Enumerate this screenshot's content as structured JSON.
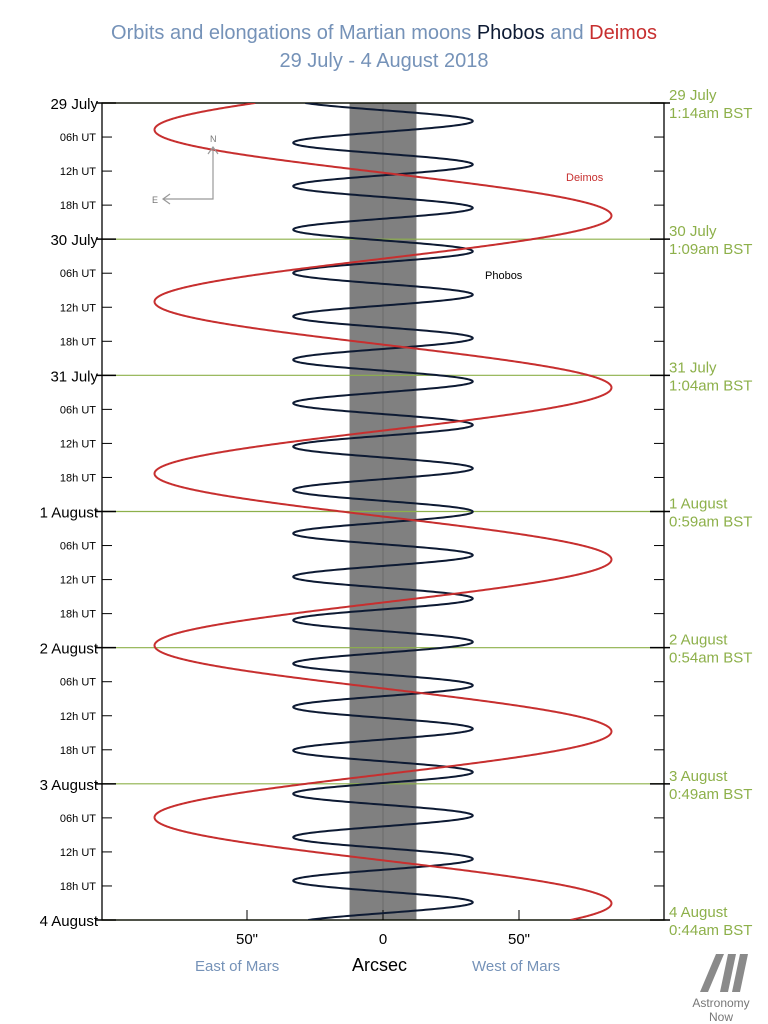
{
  "title": {
    "prefix": "Orbits and elongations of Martian moons",
    "phobos": "Phobos",
    "and": "and",
    "deimos": "Deimos",
    "dates": "29 July - 4 August 2018"
  },
  "colors": {
    "title": "#7592b8",
    "phobos": "#0d1a33",
    "deimos": "#c72f2f",
    "day_line": "#8db04a",
    "mars_band": "#808080"
  },
  "chart_data": {
    "type": "line",
    "title": "Orbits and elongations of Martian moons Phobos and Deimos",
    "subtitle": "29 July - 4 August 2018",
    "xlabel": "Arcsec",
    "xlim": [
      -100,
      100
    ],
    "ylim_days": [
      0,
      6
    ],
    "x_ticks": [
      {
        "value": -50,
        "label": "50\""
      },
      {
        "value": 0,
        "label": "0"
      },
      {
        "value": 50,
        "label": "50\""
      }
    ],
    "x_side_labels": {
      "east": "East of Mars",
      "west": "West of Mars"
    },
    "day_labels": [
      "29 July",
      "30 July",
      "31 July",
      "1 August",
      "2 August",
      "3 August",
      "4 August"
    ],
    "hour_labels": [
      "06h UT",
      "12h UT",
      "18h UT"
    ],
    "transit_labels": [
      {
        "date": "29 July",
        "time": "1:14am BST"
      },
      {
        "date": "30 July",
        "time": "1:09am BST"
      },
      {
        "date": "31 July",
        "time": "1:04am BST"
      },
      {
        "date": "1 August",
        "time": "0:59am BST"
      },
      {
        "date": "2 August",
        "time": "0:54am BST"
      },
      {
        "date": "3 August",
        "time": "0:49am BST"
      },
      {
        "date": "4 August",
        "time": "0:44am BST"
      }
    ],
    "mars_disk_halfwidth": 12.3,
    "series": [
      {
        "name": "Phobos",
        "amplitude_arcsec": 33,
        "period_hours": 7.65,
        "phase_deg": 300
      },
      {
        "name": "Deimos",
        "amplitude_arcsec": 84,
        "period_hours": 30.3,
        "phase_deg": 214
      }
    ],
    "compass": {
      "north": "N",
      "east": "E"
    }
  },
  "logo": {
    "line1": "Astronomy",
    "line2": "Now"
  }
}
